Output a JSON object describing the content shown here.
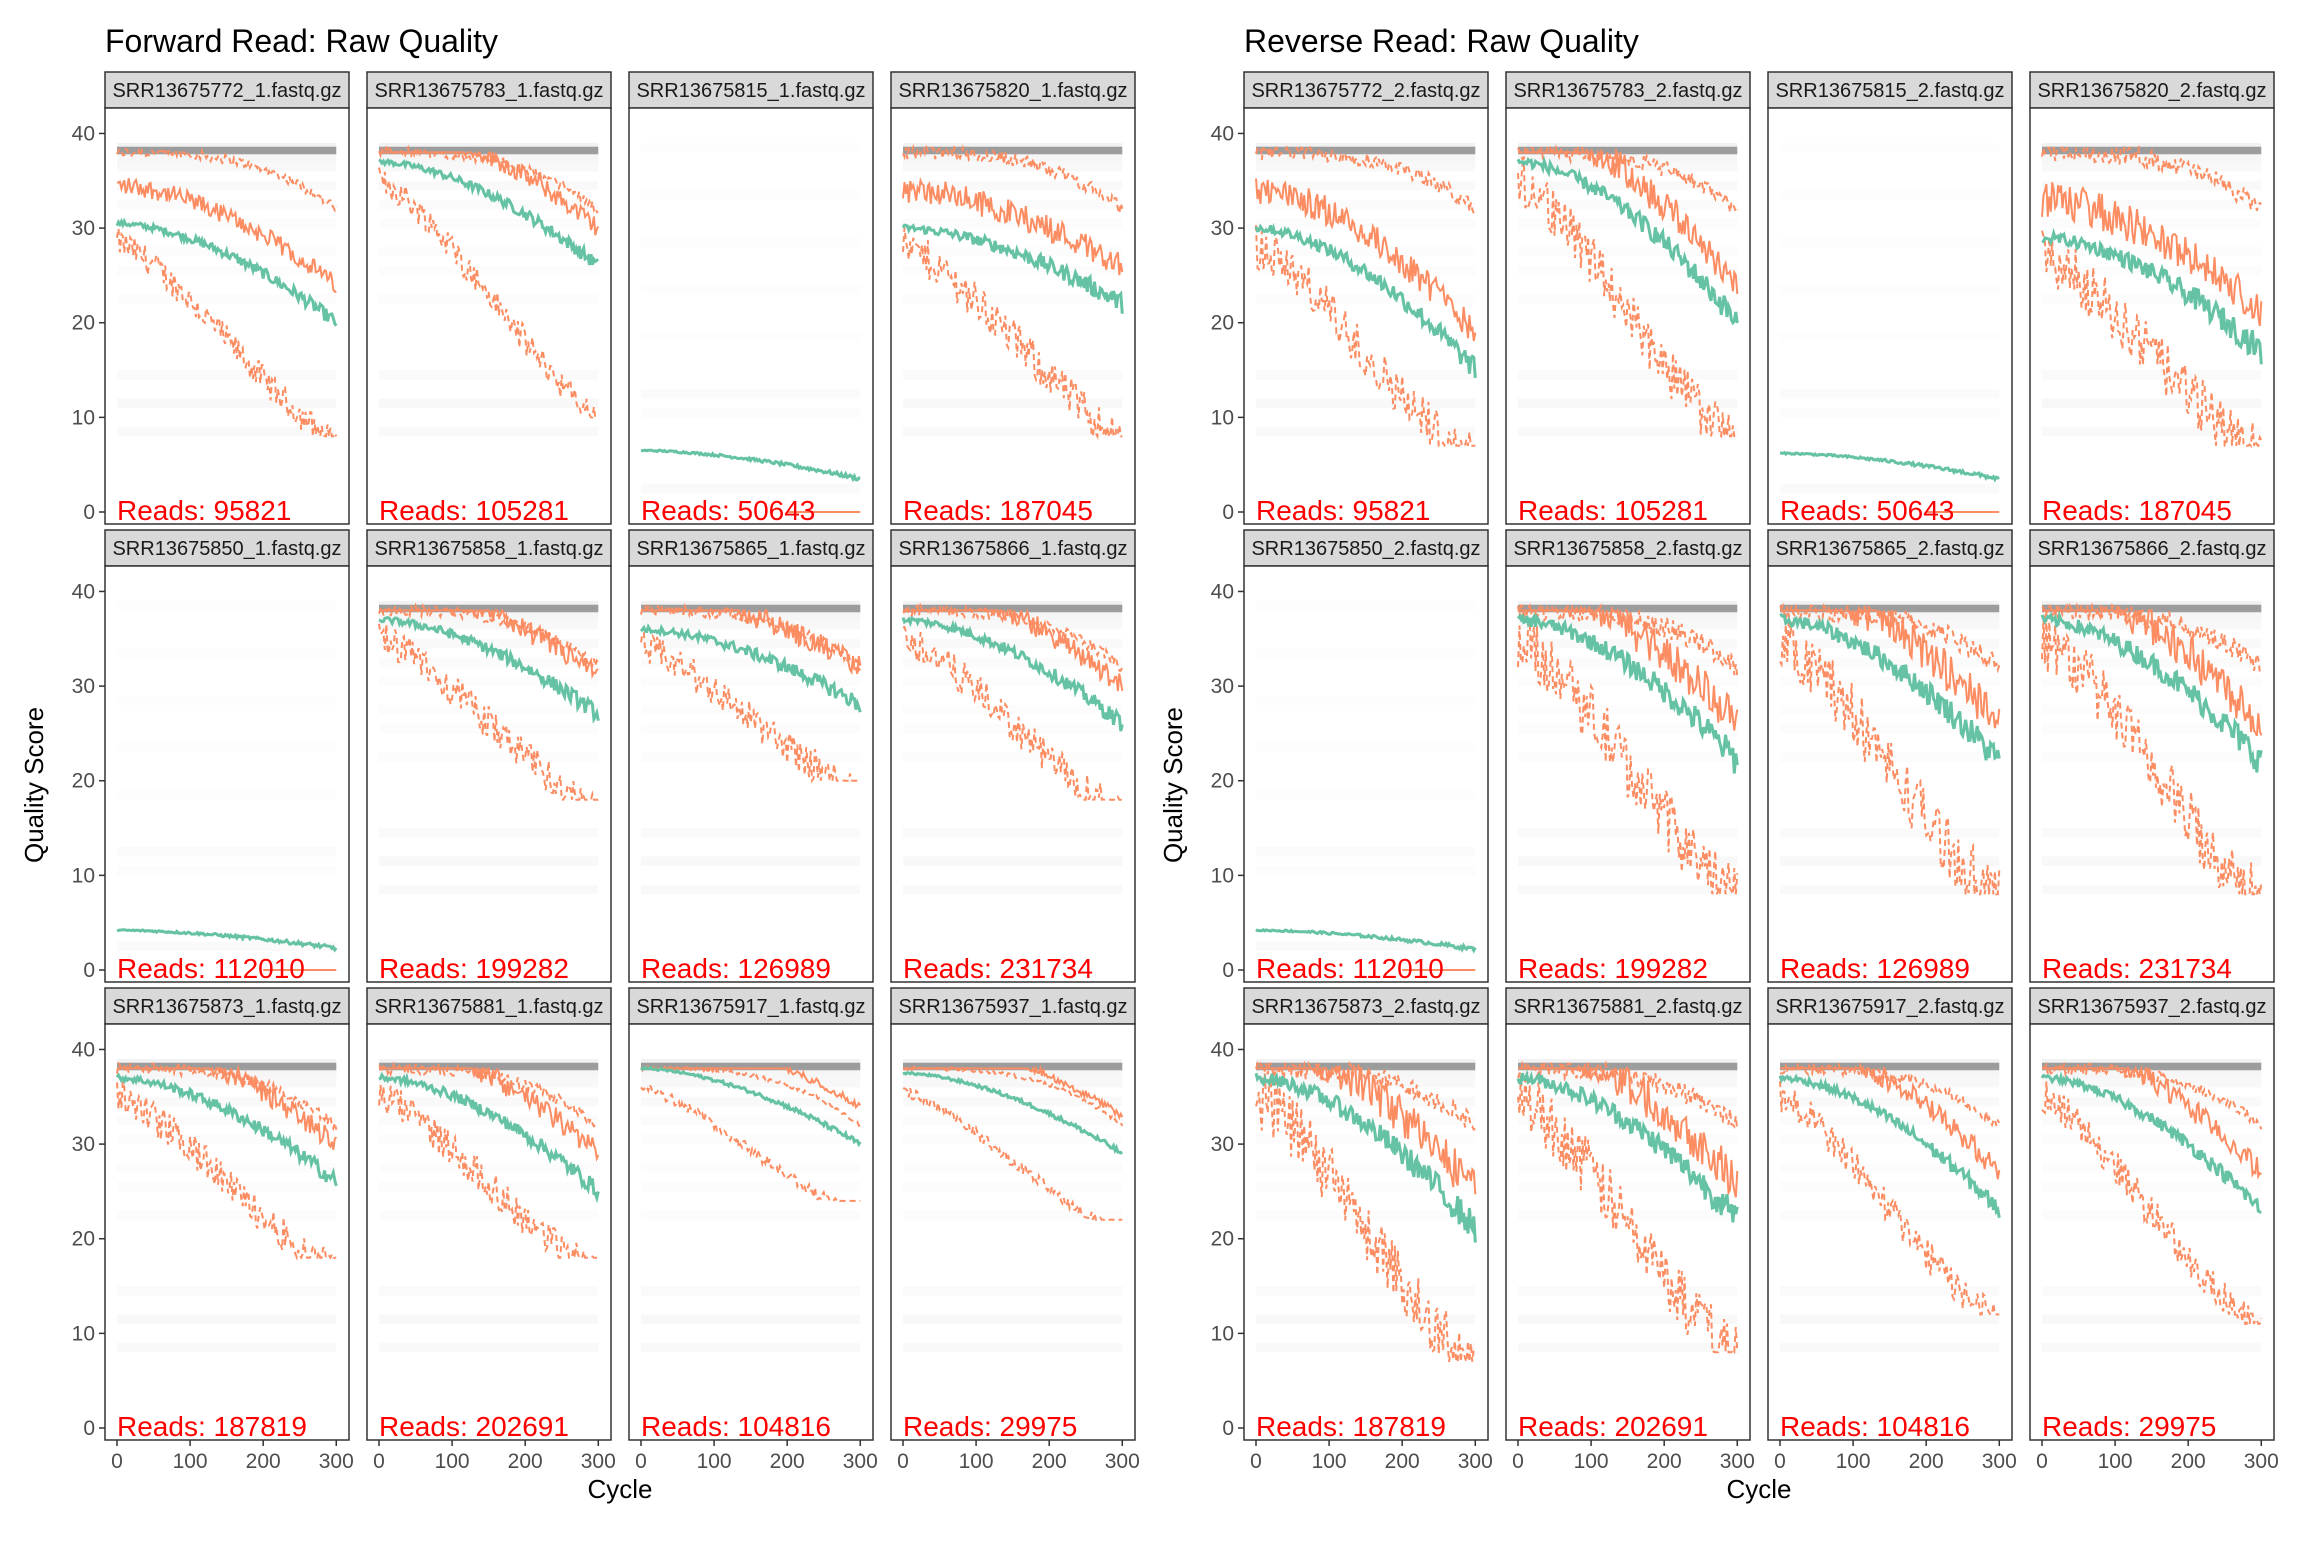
{
  "figure": {
    "type": "faceted quality profile",
    "colors": {
      "mean_line": "#66c2a5",
      "quantile_lines": "#fc8d62",
      "read_count_text": "#ff0000",
      "strip_fill": "#d9d9d9",
      "strip_border": "#333333",
      "panel_border": "#333333",
      "heat_tile": "#e8e8e8"
    },
    "panels": [
      {
        "title": "Forward Read: Raw Quality",
        "xlabel": "Cycle",
        "ylabel": "Quality Score",
        "x_ticks": [
          "0",
          "100",
          "200",
          "300"
        ],
        "y_ticks": [
          "0",
          "10",
          "20",
          "30",
          "40"
        ],
        "xlim": [
          0,
          301
        ],
        "ylim": [
          0,
          41
        ],
        "reads_prefix": "Reads: ",
        "facets": [
          {
            "label": "SRR13675772_1.fastq.gz",
            "reads": "95821",
            "profile": {
              "start": 30.5,
              "end": 20,
              "drop": 0.1,
              "q25_end": 8,
              "noise": 1.0,
              "low": false
            }
          },
          {
            "label": "SRR13675783_1.fastq.gz",
            "reads": "105281",
            "profile": {
              "start": 37,
              "end": 26,
              "drop": 0.2,
              "q25_end": 10,
              "noise": 1.0,
              "low": false
            }
          },
          {
            "label": "SRR13675815_1.fastq.gz",
            "reads": "50643",
            "profile": {
              "start": 6.5,
              "end": 3.5,
              "drop": 0,
              "q25_end": 0,
              "noise": 0.3,
              "low": true
            }
          },
          {
            "label": "SRR13675820_1.fastq.gz",
            "reads": "187045",
            "profile": {
              "start": 30,
              "end": 22,
              "drop": 0.15,
              "q25_end": 8,
              "noise": 1.4,
              "low": false
            }
          },
          {
            "label": "SRR13675850_1.fastq.gz",
            "reads": "112010",
            "profile": {
              "start": 4.2,
              "end": 2.3,
              "drop": 0,
              "q25_end": 0,
              "noise": 0.3,
              "low": true
            }
          },
          {
            "label": "SRR13675858_1.fastq.gz",
            "reads": "199282",
            "profile": {
              "start": 37,
              "end": 27,
              "drop": 0.2,
              "q25_end": 18,
              "noise": 1.2,
              "low": false
            }
          },
          {
            "label": "SRR13675865_1.fastq.gz",
            "reads": "126989",
            "profile": {
              "start": 36,
              "end": 28,
              "drop": 0.2,
              "q25_end": 20,
              "noise": 1.2,
              "low": false
            }
          },
          {
            "label": "SRR13675866_1.fastq.gz",
            "reads": "231734",
            "profile": {
              "start": 37,
              "end": 26,
              "drop": 0.2,
              "q25_end": 18,
              "noise": 1.2,
              "low": false
            }
          },
          {
            "label": "SRR13675873_1.fastq.gz",
            "reads": "187819",
            "profile": {
              "start": 37,
              "end": 26,
              "drop": 0.2,
              "q25_end": 18,
              "noise": 1.2,
              "low": false
            }
          },
          {
            "label": "SRR13675881_1.fastq.gz",
            "reads": "202691",
            "profile": {
              "start": 37,
              "end": 25,
              "drop": 0.2,
              "q25_end": 18,
              "noise": 1.2,
              "low": false
            }
          },
          {
            "label": "SRR13675917_1.fastq.gz",
            "reads": "104816",
            "profile": {
              "start": 38,
              "end": 30,
              "drop": 0.3,
              "q25_end": 24,
              "noise": 0.4,
              "low": false
            }
          },
          {
            "label": "SRR13675937_1.fastq.gz",
            "reads": "29975",
            "profile": {
              "start": 37.5,
              "end": 29,
              "drop": 0.3,
              "q25_end": 22,
              "noise": 0.4,
              "low": false
            }
          }
        ]
      },
      {
        "title": "Reverse Read: Raw Quality",
        "xlabel": "Cycle",
        "ylabel": "Quality Score",
        "x_ticks": [
          "0",
          "100",
          "200",
          "300"
        ],
        "y_ticks": [
          "0",
          "10",
          "20",
          "30",
          "40"
        ],
        "xlim": [
          0,
          301
        ],
        "ylim": [
          0,
          41
        ],
        "reads_prefix": "Reads: ",
        "facets": [
          {
            "label": "SRR13675772_2.fastq.gz",
            "reads": "95821",
            "profile": {
              "start": 30,
              "end": 15,
              "drop": 0.1,
              "q25_end": 7,
              "noise": 1.6,
              "low": false
            }
          },
          {
            "label": "SRR13675783_2.fastq.gz",
            "reads": "105281",
            "profile": {
              "start": 37,
              "end": 20,
              "drop": 0.2,
              "q25_end": 8,
              "noise": 1.8,
              "low": false
            }
          },
          {
            "label": "SRR13675815_2.fastq.gz",
            "reads": "50643",
            "profile": {
              "start": 6.2,
              "end": 3.5,
              "drop": 0,
              "q25_end": 0,
              "noise": 0.3,
              "low": true
            }
          },
          {
            "label": "SRR13675820_2.fastq.gz",
            "reads": "187045",
            "profile": {
              "start": 29,
              "end": 17,
              "drop": 0.15,
              "q25_end": 7,
              "noise": 2.0,
              "low": false
            }
          },
          {
            "label": "SRR13675850_2.fastq.gz",
            "reads": "112010",
            "profile": {
              "start": 4.2,
              "end": 2.2,
              "drop": 0,
              "q25_end": 0,
              "noise": 0.3,
              "low": true
            }
          },
          {
            "label": "SRR13675858_2.fastq.gz",
            "reads": "199282",
            "profile": {
              "start": 37,
              "end": 22,
              "drop": 0.2,
              "q25_end": 8,
              "noise": 2.2,
              "low": false
            }
          },
          {
            "label": "SRR13675865_2.fastq.gz",
            "reads": "126989",
            "profile": {
              "start": 37,
              "end": 22,
              "drop": 0.2,
              "q25_end": 8,
              "noise": 2.2,
              "low": false
            }
          },
          {
            "label": "SRR13675866_2.fastq.gz",
            "reads": "231734",
            "profile": {
              "start": 37,
              "end": 22,
              "drop": 0.2,
              "q25_end": 8,
              "noise": 2.2,
              "low": false
            }
          },
          {
            "label": "SRR13675873_2.fastq.gz",
            "reads": "187819",
            "profile": {
              "start": 37,
              "end": 21,
              "drop": 0.2,
              "q25_end": 7,
              "noise": 2.2,
              "low": false
            }
          },
          {
            "label": "SRR13675881_2.fastq.gz",
            "reads": "202691",
            "profile": {
              "start": 37,
              "end": 22,
              "drop": 0.2,
              "q25_end": 8,
              "noise": 2.2,
              "low": false
            }
          },
          {
            "label": "SRR13675917_2.fastq.gz",
            "reads": "104816",
            "profile": {
              "start": 37,
              "end": 23,
              "drop": 0.3,
              "q25_end": 12,
              "noise": 1.2,
              "low": false
            }
          },
          {
            "label": "SRR13675937_2.fastq.gz",
            "reads": "29975",
            "profile": {
              "start": 37,
              "end": 23,
              "drop": 0.3,
              "q25_end": 11,
              "noise": 1.2,
              "low": false
            }
          }
        ]
      }
    ]
  },
  "chart_data": [
    {
      "type": "line",
      "title": "Forward Read: Raw Quality",
      "xlabel": "Cycle",
      "ylabel": "Quality Score",
      "xlim": [
        0,
        301
      ],
      "ylim": [
        0,
        41
      ],
      "facet_labels": [
        "SRR13675772_1.fastq.gz",
        "SRR13675783_1.fastq.gz",
        "SRR13675815_1.fastq.gz",
        "SRR13675820_1.fastq.gz",
        "SRR13675850_1.fastq.gz",
        "SRR13675858_1.fastq.gz",
        "SRR13675865_1.fastq.gz",
        "SRR13675866_1.fastq.gz",
        "SRR13675873_1.fastq.gz",
        "SRR13675881_1.fastq.gz",
        "SRR13675917_1.fastq.gz",
        "SRR13675937_1.fastq.gz"
      ],
      "reads": [
        95821,
        105281,
        50643,
        187045,
        112010,
        199282,
        126989,
        231734,
        187819,
        202691,
        104816,
        29975
      ]
    },
    {
      "type": "line",
      "title": "Reverse Read: Raw Quality",
      "xlabel": "Cycle",
      "ylabel": "Quality Score",
      "xlim": [
        0,
        301
      ],
      "ylim": [
        0,
        41
      ],
      "facet_labels": [
        "SRR13675772_2.fastq.gz",
        "SRR13675783_2.fastq.gz",
        "SRR13675815_2.fastq.gz",
        "SRR13675820_2.fastq.gz",
        "SRR13675850_2.fastq.gz",
        "SRR13675858_2.fastq.gz",
        "SRR13675865_2.fastq.gz",
        "SRR13675866_2.fastq.gz",
        "SRR13675873_2.fastq.gz",
        "SRR13675881_2.fastq.gz",
        "SRR13675917_2.fastq.gz",
        "SRR13675937_2.fastq.gz"
      ],
      "reads": [
        95821,
        105281,
        50643,
        187045,
        112010,
        199282,
        126989,
        231734,
        187819,
        202691,
        104816,
        29975
      ]
    }
  ]
}
